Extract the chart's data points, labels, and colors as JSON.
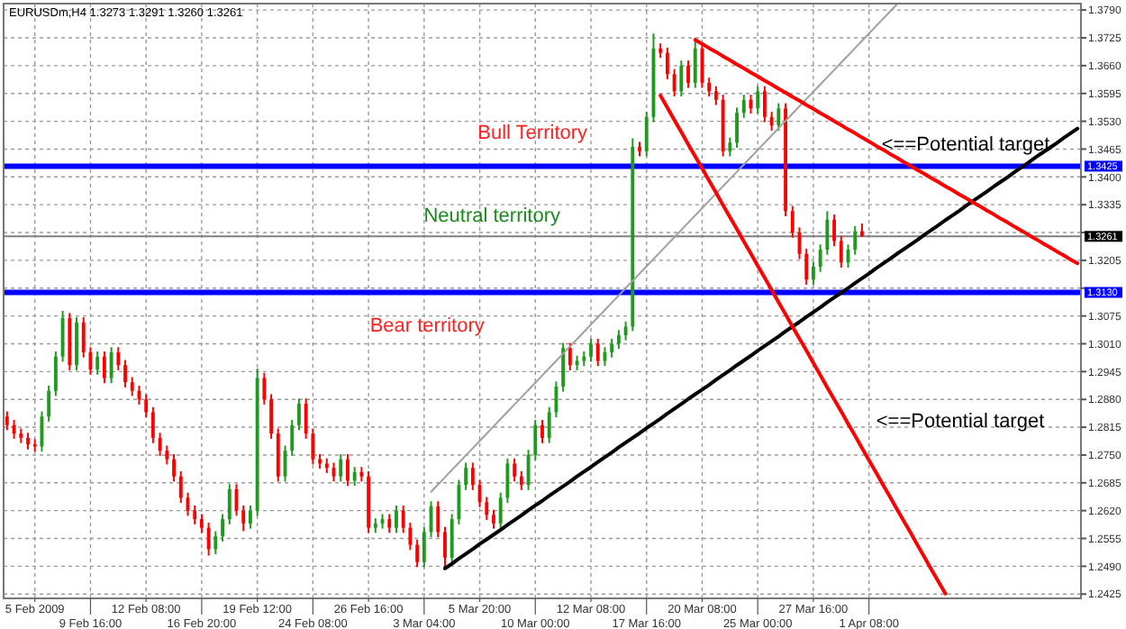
{
  "chart_data": {
    "type": "candlestick",
    "title": "EURUSDm,H4  1.3273 1.3291 1.3260 1.3261",
    "categories": [
      null,
      null,
      null,
      null,
      "5 Feb 2009",
      null,
      null,
      null,
      null,
      null,
      null,
      null,
      "9 Feb 16:00",
      null,
      null,
      null,
      null,
      null,
      null,
      null,
      "12 Feb 08:00",
      null,
      null,
      null,
      null,
      null,
      null,
      null,
      "16 Feb 20:00",
      null,
      null,
      null,
      null,
      null,
      null,
      null,
      "19 Feb 12:00",
      null,
      null,
      null,
      null,
      null,
      null,
      null,
      "24 Feb 08:00",
      null,
      null,
      null,
      null,
      null,
      null,
      null,
      "26 Feb 16:00",
      null,
      null,
      null,
      null,
      null,
      null,
      null,
      "3 Mar 04:00",
      null,
      null,
      null,
      null,
      null,
      null,
      null,
      "5 Mar 20:00",
      null,
      null,
      null,
      null,
      null,
      null,
      null,
      "10 Mar 00:00",
      null,
      null,
      null,
      null,
      null,
      null,
      null,
      "12 Mar 08:00",
      null,
      null,
      null,
      null,
      null,
      null,
      null,
      "17 Mar 16:00",
      null,
      null,
      null,
      null,
      null,
      null,
      null,
      "20 Mar 08:00",
      null,
      null,
      null,
      null,
      null,
      null,
      null,
      "25 Mar 00:00",
      null,
      null,
      null,
      null,
      null,
      null,
      null,
      "27 Mar 16:00",
      null,
      null,
      null,
      null,
      null,
      null,
      null,
      "1 Apr 08:00",
      null,
      null,
      null,
      null,
      null,
      null,
      null,
      null,
      null,
      null,
      null,
      null,
      null,
      null,
      null,
      null,
      null,
      null,
      null,
      null,
      null,
      null,
      null,
      null,
      null,
      null,
      null,
      null,
      null,
      null
    ],
    "ohlc": [
      [
        1.284,
        1.2852,
        1.2808,
        1.282
      ],
      [
        1.282,
        1.2832,
        1.2788,
        1.28
      ],
      [
        1.28,
        1.2812,
        1.2778,
        1.279
      ],
      [
        1.279,
        1.2802,
        1.2763,
        1.2775
      ],
      [
        1.2775,
        1.2787,
        1.2758,
        1.277
      ],
      [
        1.277,
        1.2852,
        1.2758,
        1.284
      ],
      [
        1.284,
        1.2912,
        1.2828,
        1.29
      ],
      [
        1.29,
        1.2992,
        1.2888,
        1.298
      ],
      [
        1.298,
        1.3087,
        1.2968,
        1.307
      ],
      [
        1.307,
        1.3082,
        1.2948,
        1.296
      ],
      [
        1.296,
        1.3072,
        1.2948,
        1.306
      ],
      [
        1.306,
        1.3072,
        1.2978,
        1.299
      ],
      [
        1.299,
        1.3002,
        1.2938,
        1.295
      ],
      [
        1.295,
        1.2992,
        1.2938,
        1.298
      ],
      [
        1.298,
        1.2992,
        1.2918,
        1.293
      ],
      [
        1.293,
        1.3002,
        1.2918,
        1.299
      ],
      [
        1.299,
        1.3002,
        1.2948,
        1.296
      ],
      [
        1.296,
        1.2972,
        1.2908,
        1.292
      ],
      [
        1.292,
        1.2932,
        1.2888,
        1.29
      ],
      [
        1.29,
        1.2912,
        1.2868,
        1.288
      ],
      [
        1.288,
        1.2892,
        1.2838,
        1.285
      ],
      [
        1.285,
        1.2862,
        1.2778,
        1.279
      ],
      [
        1.279,
        1.2802,
        1.2748,
        1.276
      ],
      [
        1.276,
        1.2772,
        1.2728,
        1.274
      ],
      [
        1.274,
        1.2752,
        1.2688,
        1.27
      ],
      [
        1.27,
        1.2712,
        1.2638,
        1.265
      ],
      [
        1.265,
        1.2662,
        1.2608,
        1.262
      ],
      [
        1.262,
        1.2632,
        1.2588,
        1.26
      ],
      [
        1.26,
        1.2612,
        1.2568,
        1.258
      ],
      [
        1.258,
        1.2592,
        1.2515,
        1.253
      ],
      [
        1.253,
        1.2572,
        1.2518,
        1.256
      ],
      [
        1.256,
        1.2612,
        1.2548,
        1.26
      ],
      [
        1.26,
        1.2682,
        1.2588,
        1.267
      ],
      [
        1.267,
        1.2682,
        1.2608,
        1.262
      ],
      [
        1.262,
        1.2632,
        1.2572,
        1.259
      ],
      [
        1.259,
        1.2632,
        1.2578,
        1.262
      ],
      [
        1.262,
        1.2952,
        1.2608,
        1.293
      ],
      [
        1.293,
        1.2942,
        1.2868,
        1.288
      ],
      [
        1.288,
        1.2892,
        1.2788,
        1.28
      ],
      [
        1.28,
        1.2812,
        1.2688,
        1.27
      ],
      [
        1.27,
        1.2772,
        1.2688,
        1.276
      ],
      [
        1.276,
        1.2832,
        1.2748,
        1.282
      ],
      [
        1.282,
        1.2882,
        1.2808,
        1.287
      ],
      [
        1.287,
        1.2882,
        1.2788,
        1.28
      ],
      [
        1.28,
        1.2812,
        1.2728,
        1.274
      ],
      [
        1.274,
        1.2752,
        1.2718,
        1.273
      ],
      [
        1.273,
        1.2742,
        1.2708,
        1.272
      ],
      [
        1.272,
        1.2732,
        1.2688,
        1.27
      ],
      [
        1.27,
        1.2752,
        1.2688,
        1.274
      ],
      [
        1.274,
        1.2752,
        1.2678,
        1.269
      ],
      [
        1.269,
        1.2722,
        1.2678,
        1.271
      ],
      [
        1.271,
        1.2722,
        1.2688,
        1.27
      ],
      [
        1.27,
        1.2712,
        1.2568,
        1.258
      ],
      [
        1.258,
        1.2602,
        1.2568,
        1.259
      ],
      [
        1.259,
        1.2612,
        1.2578,
        1.26
      ],
      [
        1.26,
        1.2612,
        1.2568,
        1.258
      ],
      [
        1.258,
        1.2632,
        1.2568,
        1.262
      ],
      [
        1.262,
        1.2632,
        1.2568,
        1.258
      ],
      [
        1.258,
        1.2592,
        1.2528,
        1.254
      ],
      [
        1.254,
        1.2552,
        1.2488,
        1.25
      ],
      [
        1.25,
        1.2582,
        1.2488,
        1.257
      ],
      [
        1.257,
        1.2642,
        1.2558,
        1.263
      ],
      [
        1.263,
        1.2642,
        1.2558,
        1.257
      ],
      [
        1.257,
        1.2582,
        1.2485,
        1.251
      ],
      [
        1.251,
        1.2612,
        1.2498,
        1.26
      ],
      [
        1.26,
        1.2692,
        1.2588,
        1.268
      ],
      [
        1.268,
        1.2732,
        1.2668,
        1.272
      ],
      [
        1.272,
        1.2732,
        1.2668,
        1.268
      ],
      [
        1.268,
        1.2692,
        1.2628,
        1.264
      ],
      [
        1.264,
        1.2652,
        1.2598,
        1.261
      ],
      [
        1.261,
        1.2622,
        1.2578,
        1.259
      ],
      [
        1.259,
        1.2662,
        1.2578,
        1.265
      ],
      [
        1.265,
        1.2742,
        1.2638,
        1.273
      ],
      [
        1.273,
        1.2742,
        1.2688,
        1.27
      ],
      [
        1.27,
        1.2712,
        1.2668,
        1.268
      ],
      [
        1.268,
        1.2762,
        1.2668,
        1.275
      ],
      [
        1.275,
        1.2832,
        1.2738,
        1.282
      ],
      [
        1.282,
        1.2832,
        1.2778,
        1.279
      ],
      [
        1.279,
        1.2862,
        1.2778,
        1.285
      ],
      [
        1.285,
        1.2922,
        1.2838,
        1.291
      ],
      [
        1.291,
        1.3012,
        1.2898,
        1.3
      ],
      [
        1.3,
        1.3012,
        1.2948,
        1.296
      ],
      [
        1.296,
        1.2982,
        1.2948,
        1.297
      ],
      [
        1.297,
        1.2992,
        1.2958,
        1.298
      ],
      [
        1.298,
        1.3022,
        1.2968,
        1.301
      ],
      [
        1.301,
        1.3022,
        1.2958,
        1.297
      ],
      [
        1.297,
        1.3002,
        1.2958,
        1.299
      ],
      [
        1.299,
        1.3022,
        1.2978,
        1.301
      ],
      [
        1.301,
        1.3042,
        1.2998,
        1.303
      ],
      [
        1.303,
        1.3062,
        1.3018,
        1.305
      ],
      [
        1.305,
        1.349,
        1.304,
        1.347
      ],
      [
        1.347,
        1.3482,
        1.3448,
        1.346
      ],
      [
        1.346,
        1.3552,
        1.3448,
        1.354
      ],
      [
        1.354,
        1.3735,
        1.3528,
        1.37
      ],
      [
        1.37,
        1.3712,
        1.3678,
        1.369
      ],
      [
        1.369,
        1.3702,
        1.3628,
        1.364
      ],
      [
        1.364,
        1.3652,
        1.3588,
        1.36
      ],
      [
        1.36,
        1.3672,
        1.3588,
        1.366
      ],
      [
        1.366,
        1.3672,
        1.3608,
        1.362
      ],
      [
        1.362,
        1.3725,
        1.3608,
        1.37
      ],
      [
        1.37,
        1.3712,
        1.3608,
        1.362
      ],
      [
        1.362,
        1.3632,
        1.3588,
        1.36
      ],
      [
        1.36,
        1.3612,
        1.3568,
        1.358
      ],
      [
        1.358,
        1.3592,
        1.3448,
        1.346
      ],
      [
        1.346,
        1.3492,
        1.3448,
        1.348
      ],
      [
        1.348,
        1.3562,
        1.3468,
        1.355
      ],
      [
        1.355,
        1.3592,
        1.3538,
        1.358
      ],
      [
        1.358,
        1.3592,
        1.3548,
        1.356
      ],
      [
        1.356,
        1.3612,
        1.3548,
        1.36
      ],
      [
        1.36,
        1.3612,
        1.3528,
        1.354
      ],
      [
        1.354,
        1.3552,
        1.3508,
        1.352
      ],
      [
        1.352,
        1.3572,
        1.3508,
        1.356
      ],
      [
        1.356,
        1.3572,
        1.3308,
        1.332
      ],
      [
        1.332,
        1.3332,
        1.3258,
        1.327
      ],
      [
        1.327,
        1.3282,
        1.3208,
        1.322
      ],
      [
        1.322,
        1.3232,
        1.3148,
        1.316
      ],
      [
        1.316,
        1.3202,
        1.3148,
        1.319
      ],
      [
        1.319,
        1.3242,
        1.3178,
        1.323
      ],
      [
        1.323,
        1.332,
        1.3218,
        1.33
      ],
      [
        1.33,
        1.3312,
        1.3238,
        1.325
      ],
      [
        1.325,
        1.3262,
        1.3188,
        1.32
      ],
      [
        1.32,
        1.3242,
        1.3188,
        1.323
      ],
      [
        1.323,
        1.3285,
        1.3218,
        1.3273
      ],
      [
        1.3273,
        1.3291,
        1.326,
        1.3261
      ],
      null,
      null,
      null,
      null,
      null,
      null,
      null,
      null,
      null,
      null,
      null,
      null,
      null,
      null,
      null,
      null,
      null,
      null,
      null,
      null,
      null,
      null,
      null,
      null,
      null,
      null,
      null,
      null,
      null,
      null,
      null
    ],
    "series": [
      {
        "type": "line",
        "color": "#a0a0a0",
        "values": [
          null,
          null,
          null,
          null,
          null,
          null,
          null,
          null,
          null,
          null,
          null,
          null,
          null,
          null,
          null,
          null,
          null,
          null,
          null,
          null,
          null,
          null,
          null,
          null,
          null,
          null,
          null,
          null,
          null,
          null,
          null,
          null,
          null,
          null,
          null,
          null,
          null,
          null,
          null,
          null,
          null,
          null,
          null,
          null,
          null,
          null,
          null,
          null,
          null,
          null,
          null,
          null,
          null,
          null,
          null,
          null,
          null,
          null,
          null,
          null,
          null,
          1.2664,
          1.2681,
          1.2698,
          1.2715,
          1.2732,
          1.2749,
          1.2766,
          1.2783,
          1.28,
          1.2817,
          1.2834,
          1.2851,
          1.2868,
          1.2885,
          1.2902,
          1.2919,
          1.2936,
          1.2953,
          1.297,
          1.2987,
          1.3004,
          1.3021,
          1.3038,
          1.3055,
          1.3072,
          1.3089,
          1.3106,
          1.3123,
          1.314,
          1.3157,
          1.3174,
          1.3191,
          1.3208,
          1.3225,
          1.3242,
          1.3259,
          1.3276,
          1.3293,
          1.331,
          1.3327,
          1.3344,
          1.3361,
          1.3378,
          1.3395,
          1.3412,
          1.3429,
          1.3446,
          1.3463,
          1.348,
          1.3497,
          1.3514,
          1.3531,
          1.3548,
          1.3565,
          1.3582,
          1.3599,
          1.3616,
          1.3633,
          1.365,
          1.3667,
          1.3684,
          1.3701,
          1.3718,
          1.3735,
          1.3752,
          1.3769,
          1.3786,
          1.3803,
          null,
          null,
          null,
          null,
          null,
          null,
          null,
          null,
          null,
          null,
          null,
          null,
          null,
          null,
          null,
          null,
          null,
          null,
          null,
          null,
          null,
          null,
          null,
          null,
          null,
          null
        ]
      },
      {
        "type": "line",
        "color": "#000000",
        "values": [
          null,
          null,
          null,
          null,
          null,
          null,
          null,
          null,
          null,
          null,
          null,
          null,
          null,
          null,
          null,
          null,
          null,
          null,
          null,
          null,
          null,
          null,
          null,
          null,
          null,
          null,
          null,
          null,
          null,
          null,
          null,
          null,
          null,
          null,
          null,
          null,
          null,
          null,
          null,
          null,
          null,
          null,
          null,
          null,
          null,
          null,
          null,
          null,
          null,
          null,
          null,
          null,
          null,
          null,
          null,
          null,
          null,
          null,
          null,
          null,
          null,
          null,
          null,
          1.2485,
          1.2496,
          1.2508,
          1.2519,
          1.253,
          1.2542,
          1.2553,
          1.2564,
          1.2575,
          1.2587,
          1.2598,
          1.2609,
          1.2621,
          1.2632,
          1.2643,
          1.2655,
          1.2666,
          1.2677,
          1.2688,
          1.27,
          1.2711,
          1.2722,
          1.2734,
          1.2745,
          1.2756,
          1.2768,
          1.2779,
          1.279,
          1.2801,
          1.2813,
          1.2824,
          1.2835,
          1.2847,
          1.2858,
          1.2869,
          1.2881,
          1.2892,
          1.2903,
          1.2914,
          1.2926,
          1.2937,
          1.2948,
          1.296,
          1.2971,
          1.2982,
          1.2994,
          1.3005,
          1.3016,
          1.3027,
          1.3039,
          1.305,
          1.3061,
          1.3073,
          1.3084,
          1.3095,
          1.3107,
          1.3118,
          1.3129,
          1.314,
          1.3152,
          1.3163,
          1.3174,
          1.3186,
          1.3197,
          1.3208,
          1.322,
          1.3231,
          1.3242,
          1.3253,
          1.3265,
          1.3276,
          1.3287,
          1.3299,
          1.331,
          1.3321,
          1.3333,
          1.3344,
          1.3355,
          1.3366,
          1.3378,
          1.3389,
          1.34,
          1.3412,
          1.3423,
          1.3434,
          1.3446,
          1.3457,
          1.3468,
          1.3479,
          1.3491,
          1.3502,
          1.3513
        ]
      },
      {
        "type": "line",
        "color": "#ff0000",
        "values": [
          null,
          null,
          null,
          null,
          null,
          null,
          null,
          null,
          null,
          null,
          null,
          null,
          null,
          null,
          null,
          null,
          null,
          null,
          null,
          null,
          null,
          null,
          null,
          null,
          null,
          null,
          null,
          null,
          null,
          null,
          null,
          null,
          null,
          null,
          null,
          null,
          null,
          null,
          null,
          null,
          null,
          null,
          null,
          null,
          null,
          null,
          null,
          null,
          null,
          null,
          null,
          null,
          null,
          null,
          null,
          null,
          null,
          null,
          null,
          null,
          null,
          null,
          null,
          null,
          null,
          null,
          null,
          null,
          null,
          null,
          null,
          null,
          null,
          null,
          null,
          null,
          null,
          null,
          null,
          null,
          null,
          null,
          null,
          null,
          null,
          null,
          null,
          null,
          null,
          null,
          null,
          null,
          null,
          null,
          null,
          null,
          null,
          null,
          null,
          1.372,
          1.3711,
          1.3701,
          1.3692,
          1.3682,
          1.3673,
          1.3663,
          1.3654,
          1.3644,
          1.3635,
          1.3625,
          1.3616,
          1.3606,
          1.3597,
          1.3587,
          1.3578,
          1.3568,
          1.3559,
          1.3549,
          1.354,
          1.353,
          1.3521,
          1.3511,
          1.3502,
          1.3492,
          1.3483,
          1.3473,
          1.3464,
          1.3454,
          1.3445,
          1.3435,
          1.3426,
          1.3416,
          1.3407,
          1.3397,
          1.3388,
          1.3378,
          1.3369,
          1.3359,
          1.335,
          1.334,
          1.3331,
          1.3321,
          1.3312,
          1.3302,
          1.3293,
          1.3283,
          1.3274,
          1.3264,
          1.3255,
          1.3245,
          1.3236,
          1.3226,
          1.3217,
          1.3207,
          1.3198
        ]
      },
      {
        "type": "line",
        "color": "#ff0000",
        "values": [
          null,
          null,
          null,
          null,
          null,
          null,
          null,
          null,
          null,
          null,
          null,
          null,
          null,
          null,
          null,
          null,
          null,
          null,
          null,
          null,
          null,
          null,
          null,
          null,
          null,
          null,
          null,
          null,
          null,
          null,
          null,
          null,
          null,
          null,
          null,
          null,
          null,
          null,
          null,
          null,
          null,
          null,
          null,
          null,
          null,
          null,
          null,
          null,
          null,
          null,
          null,
          null,
          null,
          null,
          null,
          null,
          null,
          null,
          null,
          null,
          null,
          null,
          null,
          null,
          null,
          null,
          null,
          null,
          null,
          null,
          null,
          null,
          null,
          null,
          null,
          null,
          null,
          null,
          null,
          null,
          null,
          null,
          null,
          null,
          null,
          null,
          null,
          null,
          null,
          null,
          null,
          null,
          null,
          null,
          1.359,
          1.3562,
          1.3533,
          1.3505,
          1.3476,
          1.3448,
          1.342,
          1.3391,
          1.3363,
          1.3334,
          1.3306,
          1.3278,
          1.3249,
          1.3221,
          1.3192,
          1.3164,
          1.3136,
          1.3107,
          1.3079,
          1.305,
          1.3022,
          1.2994,
          1.2965,
          1.2937,
          1.2908,
          1.288,
          1.2852,
          1.2823,
          1.2795,
          1.2766,
          1.2738,
          1.271,
          1.2681,
          1.2653,
          1.2624,
          1.2596,
          1.2568,
          1.2539,
          1.2511,
          1.2482,
          1.2454,
          1.2426,
          null,
          null,
          null,
          null,
          null,
          null,
          null,
          null,
          null,
          null,
          null,
          null,
          null,
          null,
          null,
          null,
          null,
          null,
          null
        ]
      }
    ],
    "ylim": [
      1.2415,
      1.3805
    ],
    "yticks": [
      1.2425,
      {
        "value": 1.249,
        "label": "1.2490"
      },
      1.2555,
      {
        "value": 1.262,
        "label": "1.2620"
      },
      1.2685,
      {
        "value": 1.275,
        "label": "1.2750"
      },
      1.2815,
      {
        "value": 1.288,
        "label": "1.2880"
      },
      1.2945,
      {
        "value": 1.301,
        "label": "1.3010"
      },
      1.3075,
      {
        "value": 1.314,
        "label": null
      },
      1.3205,
      {
        "value": 1.327,
        "label": null
      },
      1.3335,
      {
        "value": 1.34,
        "label": "1.3400"
      },
      1.3465,
      {
        "value": 1.353,
        "label": "1.3530"
      },
      1.3595,
      {
        "value": 1.366,
        "label": "1.3660"
      },
      1.3725,
      {
        "value": 1.379,
        "label": "1.3790"
      }
    ],
    "grid": true,
    "ref_lines": [
      {
        "axis": "y",
        "value": 1.3425,
        "label": "1.3425",
        "color": "#0000ff"
      },
      {
        "axis": "y",
        "value": 1.313,
        "label": "1.3130",
        "color": "#0000ff"
      },
      {
        "axis": "y",
        "value": 1.3261,
        "label": "1.3261",
        "color": "#808080"
      }
    ],
    "annotations": [
      "Bull Territory",
      "Neutral territory",
      "Bear territory",
      "<==Potential target",
      "<==Potential target"
    ]
  }
}
